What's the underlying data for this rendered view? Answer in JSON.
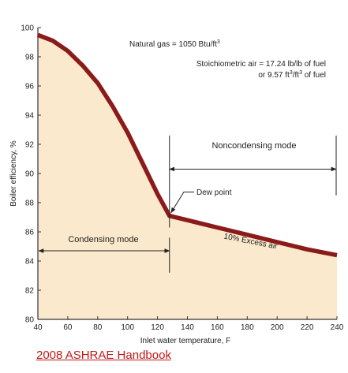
{
  "chart_data": {
    "type": "area",
    "x": [
      40,
      50,
      60,
      70,
      80,
      90,
      100,
      110,
      120,
      128,
      140,
      160,
      180,
      200,
      220,
      240
    ],
    "series": [
      {
        "values": [
          99.5,
          99.1,
          98.4,
          97.4,
          96.2,
          94.6,
          92.8,
          90.7,
          88.6,
          87.1,
          86.8,
          86.3,
          85.8,
          85.3,
          84.8,
          84.4
        ]
      }
    ],
    "xlabel": "Inlet water temperature, F",
    "ylabel": "Boiler efficiency, %",
    "xlim": [
      40,
      240
    ],
    "ylim": [
      80,
      100
    ],
    "x_ticks": [
      "40",
      "60",
      "80",
      "100",
      "120",
      "140",
      "160",
      "180",
      "200",
      "220",
      "240"
    ],
    "y_ticks": [
      "80",
      "82",
      "84",
      "86",
      "88",
      "90",
      "92",
      "94",
      "96",
      "98",
      "100"
    ],
    "grid": false,
    "legend": "none",
    "colors": {
      "line": "#8b1a1a",
      "fill": "#fae9cc",
      "axis": "#333333"
    },
    "annotations": {
      "gas": "Natural gas = 1050 Btu/ft",
      "gas_sup": "3",
      "stoich_line1": "Stoichiometric air = 17.24 lb/lb of fuel",
      "stoich_line2_a": "or 9.57 ft",
      "stoich_line2_sup1": "3",
      "stoich_line2_b": "/ft",
      "stoich_line2_sup2": "3",
      "stoich_line2_c": " of fuel",
      "dew_point": "Dew point",
      "excess_air": "10% Excess air",
      "condensing": "Condensing mode",
      "noncondensing": "Noncondensing mode"
    },
    "dew_point_x": 128,
    "condensing_range": [
      40,
      128
    ],
    "noncondensing_range": [
      128,
      240
    ]
  },
  "source": "2008 ASHRAE Handbook"
}
